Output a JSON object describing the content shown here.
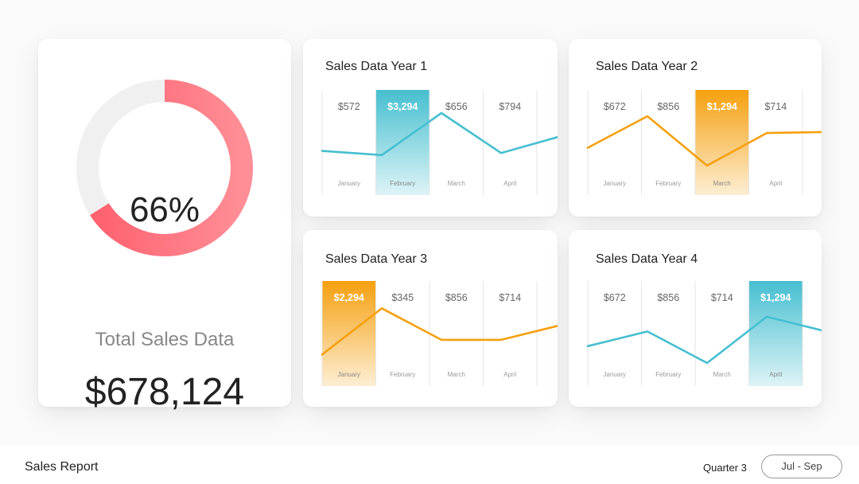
{
  "colors": {
    "teal": "#46bfd0",
    "orange": "#f5a00f",
    "donut_start": "#ff5f6d",
    "donut_end": "#ff8e96",
    "donut_track": "#f0f0f0"
  },
  "summary": {
    "percent_label": "66%",
    "percent": 66,
    "total_label": "Total Sales Data",
    "total_value": "$678,124"
  },
  "footer": {
    "title": "Sales Report",
    "quarter": "Quarter 3",
    "period": "Jul - Sep"
  },
  "chart_data": [
    {
      "type": "line",
      "title": "Sales Data Year 1",
      "categories": [
        "January",
        "February",
        "March",
        "April"
      ],
      "value_labels": [
        "$572",
        "$3,294",
        "$656",
        "$794"
      ],
      "line_y": [
        42,
        38,
        78,
        40,
        56
      ],
      "ylim": [
        0,
        100
      ],
      "highlight_index": 1,
      "color": "teal"
    },
    {
      "type": "line",
      "title": "Sales Data Year 2",
      "categories": [
        "January",
        "February",
        "March",
        "April"
      ],
      "value_labels": [
        "$672",
        "$856",
        "$1,294",
        "$714"
      ],
      "line_y": [
        45,
        75,
        28,
        59,
        60
      ],
      "ylim": [
        0,
        100
      ],
      "highlight_index": 2,
      "color": "orange"
    },
    {
      "type": "line",
      "title": "Sales Data Year 3",
      "categories": [
        "January",
        "February",
        "March",
        "April"
      ],
      "value_labels": [
        "$2,294",
        "$345",
        "$856",
        "$714"
      ],
      "line_y": [
        30,
        74,
        44,
        44,
        58
      ],
      "ylim": [
        0,
        100
      ],
      "highlight_index": 0,
      "color": "orange"
    },
    {
      "type": "line",
      "title": "Sales Data Year 4",
      "categories": [
        "January",
        "February",
        "March",
        "April"
      ],
      "value_labels": [
        "$672",
        "$856",
        "$714",
        "$1,294"
      ],
      "line_y": [
        38,
        52,
        22,
        66,
        52
      ],
      "ylim": [
        0,
        100
      ],
      "highlight_index": 3,
      "color": "teal"
    }
  ]
}
